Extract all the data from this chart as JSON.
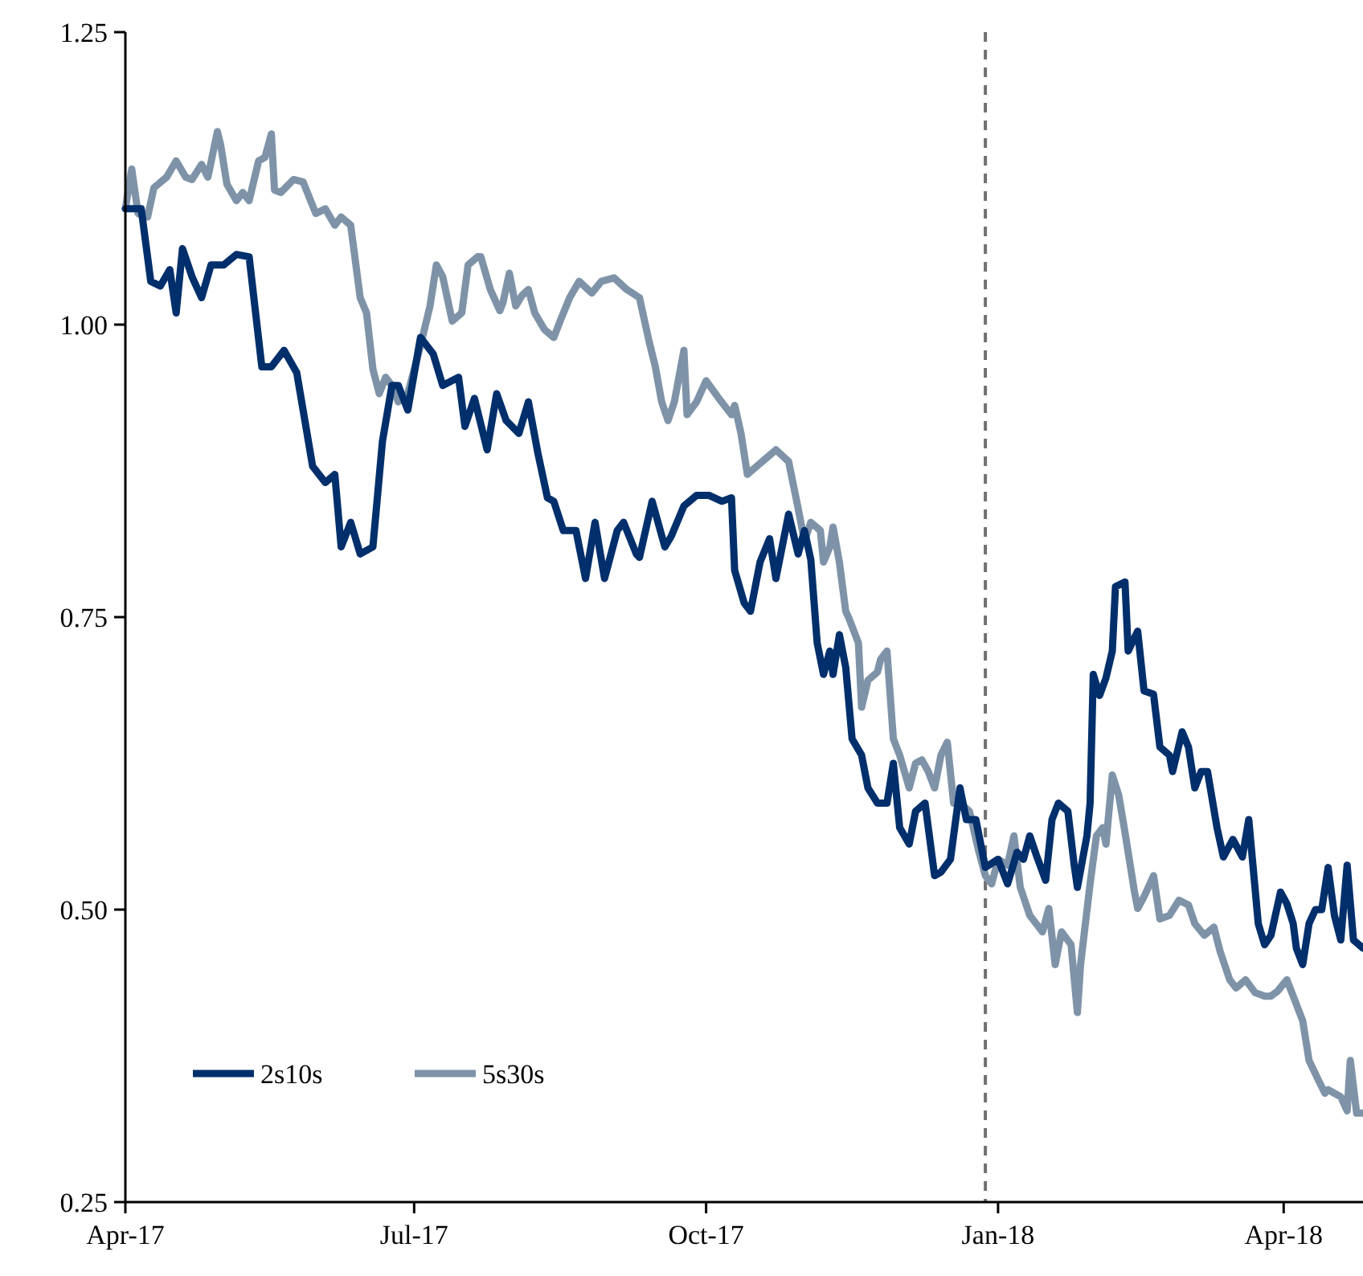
{
  "chart_data": {
    "type": "line",
    "xlim": [
      "2017-04-01",
      "2018-04-26"
    ],
    "ylim": [
      0.25,
      1.25
    ],
    "xticks": [
      {
        "value": "2017-04-01",
        "label": "Apr-17"
      },
      {
        "value": "2017-07-01",
        "label": "Jul-17"
      },
      {
        "value": "2017-10-01",
        "label": "Oct-17"
      },
      {
        "value": "2018-01-01",
        "label": "Jan-18"
      },
      {
        "value": "2018-04-01",
        "label": "Apr-18"
      }
    ],
    "yticks": [
      {
        "value": 0.25,
        "label": "0.25"
      },
      {
        "value": 0.5,
        "label": "0.50"
      },
      {
        "value": 0.75,
        "label": "0.75"
      },
      {
        "value": 1,
        "label": "1.00"
      },
      {
        "value": 1.25,
        "label": "1.25"
      }
    ],
    "grid": false,
    "legend": "bottom left",
    "marker": "none",
    "line_style": "solid",
    "ref_lines": [
      {
        "axis": "x",
        "value": "2017-12-28",
        "color": "#707070",
        "line_style": "dashed"
      }
    ],
    "series": [
      {
        "name": "5s30s",
        "color": "#7f93a8",
        "x": [
          "2017-04-01",
          "2017-04-03",
          "2017-04-05",
          "2017-04-08",
          "2017-04-10",
          "2017-04-14",
          "2017-04-17",
          "2017-04-20",
          "2017-04-22",
          "2017-04-25",
          "2017-04-27",
          "2017-04-30",
          "2017-05-01",
          "2017-05-03",
          "2017-05-06",
          "2017-05-08",
          "2017-05-10",
          "2017-05-13",
          "2017-05-15",
          "2017-05-17",
          "2017-05-18",
          "2017-05-20",
          "2017-05-24",
          "2017-05-27",
          "2017-05-31",
          "2017-06-03",
          "2017-06-06",
          "2017-06-08",
          "2017-06-11",
          "2017-06-14",
          "2017-06-16",
          "2017-06-18",
          "2017-06-20",
          "2017-06-22",
          "2017-06-24",
          "2017-06-26",
          "2017-06-29",
          "2017-07-03",
          "2017-07-06",
          "2017-07-08",
          "2017-07-10",
          "2017-07-13",
          "2017-07-16",
          "2017-07-18",
          "2017-07-21",
          "2017-07-22",
          "2017-07-25",
          "2017-07-28",
          "2017-07-29",
          "2017-07-31",
          "2017-08-02",
          "2017-08-04",
          "2017-08-06",
          "2017-08-08",
          "2017-08-11",
          "2017-08-14",
          "2017-08-16",
          "2017-08-19",
          "2017-08-22",
          "2017-08-26",
          "2017-08-29",
          "2017-09-02",
          "2017-09-06",
          "2017-09-10",
          "2017-09-13",
          "2017-09-15",
          "2017-09-17",
          "2017-09-19",
          "2017-09-21",
          "2017-09-24",
          "2017-09-25",
          "2017-09-28",
          "2017-10-01",
          "2017-10-05",
          "2017-10-09",
          "2017-10-10",
          "2017-10-12",
          "2017-10-14",
          "2017-10-17",
          "2017-10-20",
          "2017-10-23",
          "2017-10-27",
          "2017-10-30",
          "2017-11-01",
          "2017-11-03",
          "2017-11-06",
          "2017-11-07",
          "2017-11-09",
          "2017-11-10",
          "2017-11-12",
          "2017-11-14",
          "2017-11-15",
          "2017-11-18",
          "2017-11-19",
          "2017-11-21",
          "2017-11-24",
          "2017-11-25",
          "2017-11-27",
          "2017-11-29",
          "2017-12-01",
          "2017-12-04",
          "2017-12-06",
          "2017-12-08",
          "2017-12-10",
          "2017-12-12",
          "2017-12-14",
          "2017-12-16",
          "2017-12-18",
          "2017-12-20",
          "2017-12-23",
          "2017-12-26",
          "2017-12-28",
          "2017-12-30",
          "2018-01-01",
          "2018-01-04",
          "2018-01-06",
          "2018-01-08",
          "2018-01-11",
          "2018-01-13",
          "2018-01-15",
          "2018-01-17",
          "2018-01-19",
          "2018-01-21",
          "2018-01-24",
          "2018-01-26",
          "2018-01-27",
          "2018-01-30",
          "2018-02-01",
          "2018-02-03",
          "2018-02-04",
          "2018-02-06",
          "2018-02-08",
          "2018-02-10",
          "2018-02-13",
          "2018-02-14",
          "2018-02-16",
          "2018-02-19",
          "2018-02-21",
          "2018-02-24",
          "2018-02-27",
          "2018-03-02",
          "2018-03-04",
          "2018-03-07",
          "2018-03-10",
          "2018-03-12",
          "2018-03-15",
          "2018-03-17",
          "2018-03-20",
          "2018-03-23",
          "2018-03-26",
          "2018-03-28",
          "2018-03-30",
          "2018-04-02",
          "2018-04-04",
          "2018-04-07",
          "2018-04-09",
          "2018-04-12",
          "2018-04-14",
          "2018-04-15",
          "2018-04-19",
          "2018-04-21",
          "2018-04-22",
          "2018-04-24",
          "2018-04-26"
        ],
        "values": [
          1.099,
          1.133,
          1.095,
          1.092,
          1.117,
          1.126,
          1.14,
          1.126,
          1.124,
          1.137,
          1.126,
          1.165,
          1.154,
          1.12,
          1.106,
          1.113,
          1.106,
          1.14,
          1.143,
          1.163,
          1.115,
          1.113,
          1.124,
          1.122,
          1.095,
          1.099,
          1.085,
          1.092,
          1.085,
          1.023,
          1.01,
          0.962,
          0.941,
          0.955,
          0.948,
          0.934,
          0.941,
          0.982,
          1.016,
          1.051,
          1.041,
          1.003,
          1.01,
          1.051,
          1.058,
          1.058,
          1.03,
          1.012,
          1.019,
          1.044,
          1.016,
          1.025,
          1.03,
          1.01,
          0.996,
          0.989,
          1.003,
          1.023,
          1.037,
          1.027,
          1.037,
          1.04,
          1.03,
          1.023,
          0.986,
          0.964,
          0.934,
          0.918,
          0.934,
          0.978,
          0.923,
          0.934,
          0.952,
          0.937,
          0.923,
          0.931,
          0.907,
          0.872,
          0.879,
          0.886,
          0.893,
          0.883,
          0.843,
          0.815,
          0.831,
          0.824,
          0.797,
          0.81,
          0.827,
          0.797,
          0.755,
          0.749,
          0.728,
          0.673,
          0.696,
          0.703,
          0.714,
          0.721,
          0.646,
          0.632,
          0.604,
          0.625,
          0.628,
          0.618,
          0.604,
          0.632,
          0.643,
          0.591,
          0.591,
          0.584,
          0.549,
          0.529,
          0.522,
          0.543,
          0.538,
          0.563,
          0.519,
          0.495,
          0.488,
          0.481,
          0.501,
          0.453,
          0.481,
          0.47,
          0.412,
          0.453,
          0.522,
          0.563,
          0.57,
          0.556,
          0.615,
          0.598,
          0.566,
          0.515,
          0.501,
          0.511,
          0.529,
          0.492,
          0.495,
          0.508,
          0.504,
          0.488,
          0.478,
          0.485,
          0.464,
          0.44,
          0.433,
          0.44,
          0.429,
          0.426,
          0.426,
          0.43,
          0.44,
          0.426,
          0.405,
          0.371,
          0.354,
          0.343,
          0.346,
          0.34,
          0.328,
          0.371,
          0.326,
          0.326
        ]
      },
      {
        "name": "2s10s",
        "color": "#002f6c",
        "x": [
          "2017-04-01",
          "2017-04-06",
          "2017-04-09",
          "2017-04-12",
          "2017-04-15",
          "2017-04-17",
          "2017-04-19",
          "2017-04-22",
          "2017-04-25",
          "2017-04-28",
          "2017-05-02",
          "2017-05-06",
          "2017-05-10",
          "2017-05-14",
          "2017-05-17",
          "2017-05-21",
          "2017-05-25",
          "2017-05-27",
          "2017-05-30",
          "2017-06-03",
          "2017-06-06",
          "2017-06-08",
          "2017-06-11",
          "2017-06-14",
          "2017-06-18",
          "2017-06-21",
          "2017-06-24",
          "2017-06-26",
          "2017-06-29",
          "2017-07-03",
          "2017-07-07",
          "2017-07-10",
          "2017-07-15",
          "2017-07-17",
          "2017-07-20",
          "2017-07-24",
          "2017-07-27",
          "2017-07-30",
          "2017-08-03",
          "2017-08-06",
          "2017-08-09",
          "2017-08-12",
          "2017-08-14",
          "2017-08-17",
          "2017-08-21",
          "2017-08-24",
          "2017-08-27",
          "2017-08-30",
          "2017-09-03",
          "2017-09-05",
          "2017-09-09",
          "2017-09-10",
          "2017-09-14",
          "2017-09-18",
          "2017-09-20",
          "2017-09-24",
          "2017-09-28",
          "2017-10-02",
          "2017-10-06",
          "2017-10-09",
          "2017-10-10",
          "2017-10-13",
          "2017-10-15",
          "2017-10-18",
          "2017-10-21",
          "2017-10-23",
          "2017-10-27",
          "2017-10-30",
          "2017-11-01",
          "2017-11-03",
          "2017-11-05",
          "2017-11-07",
          "2017-11-09",
          "2017-11-10",
          "2017-11-12",
          "2017-11-14",
          "2017-11-16",
          "2017-11-19",
          "2017-11-21",
          "2017-11-24",
          "2017-11-27",
          "2017-11-29",
          "2017-12-01",
          "2017-12-04",
          "2017-12-06",
          "2017-12-09",
          "2017-12-12",
          "2017-12-14",
          "2017-12-17",
          "2017-12-20",
          "2017-12-22",
          "2017-12-25",
          "2017-12-28",
          "2018-01-01",
          "2018-01-04",
          "2018-01-07",
          "2018-01-09",
          "2018-01-11",
          "2018-01-13",
          "2018-01-16",
          "2018-01-18",
          "2018-01-20",
          "2018-01-23",
          "2018-01-25",
          "2018-01-26",
          "2018-01-29",
          "2018-01-30",
          "2018-01-31",
          "2018-02-02",
          "2018-02-04",
          "2018-02-06",
          "2018-02-07",
          "2018-02-10",
          "2018-02-11",
          "2018-02-14",
          "2018-02-16",
          "2018-02-19",
          "2018-02-21",
          "2018-02-24",
          "2018-02-25",
          "2018-02-28",
          "2018-03-02",
          "2018-03-04",
          "2018-03-06",
          "2018-03-08",
          "2018-03-11",
          "2018-03-13",
          "2018-03-16",
          "2018-03-19",
          "2018-03-21",
          "2018-03-24",
          "2018-03-26",
          "2018-03-28",
          "2018-03-31",
          "2018-04-02",
          "2018-04-04",
          "2018-04-05",
          "2018-04-07",
          "2018-04-09",
          "2018-04-11",
          "2018-04-13",
          "2018-04-15",
          "2018-04-17",
          "2018-04-19",
          "2018-04-21",
          "2018-04-23",
          "2018-04-26"
        ],
        "values": [
          1.099,
          1.099,
          1.037,
          1.033,
          1.047,
          1.01,
          1.065,
          1.041,
          1.023,
          1.051,
          1.051,
          1.06,
          1.058,
          0.964,
          0.964,
          0.978,
          0.959,
          0.927,
          0.879,
          0.865,
          0.872,
          0.81,
          0.831,
          0.804,
          0.81,
          0.9,
          0.948,
          0.948,
          0.927,
          0.989,
          0.975,
          0.948,
          0.955,
          0.913,
          0.937,
          0.893,
          0.941,
          0.918,
          0.907,
          0.934,
          0.89,
          0.852,
          0.849,
          0.824,
          0.824,
          0.783,
          0.831,
          0.783,
          0.824,
          0.831,
          0.804,
          0.801,
          0.849,
          0.81,
          0.819,
          0.845,
          0.854,
          0.854,
          0.849,
          0.852,
          0.79,
          0.762,
          0.755,
          0.797,
          0.817,
          0.783,
          0.838,
          0.804,
          0.824,
          0.799,
          0.728,
          0.701,
          0.721,
          0.701,
          0.735,
          0.707,
          0.646,
          0.632,
          0.604,
          0.591,
          0.591,
          0.625,
          0.57,
          0.556,
          0.584,
          0.591,
          0.529,
          0.532,
          0.543,
          0.604,
          0.577,
          0.577,
          0.536,
          0.543,
          0.522,
          0.549,
          0.543,
          0.563,
          0.547,
          0.525,
          0.577,
          0.591,
          0.584,
          0.538,
          0.519,
          0.563,
          0.591,
          0.701,
          0.683,
          0.698,
          0.721,
          0.776,
          0.78,
          0.721,
          0.738,
          0.687,
          0.684,
          0.639,
          0.632,
          0.618,
          0.652,
          0.639,
          0.604,
          0.618,
          0.618,
          0.57,
          0.545,
          0.56,
          0.545,
          0.577,
          0.488,
          0.47,
          0.478,
          0.515,
          0.505,
          0.488,
          0.467,
          0.453,
          0.488,
          0.5,
          0.5,
          0.536,
          0.495,
          0.474,
          0.538,
          0.474,
          0.467
        ]
      }
    ]
  }
}
